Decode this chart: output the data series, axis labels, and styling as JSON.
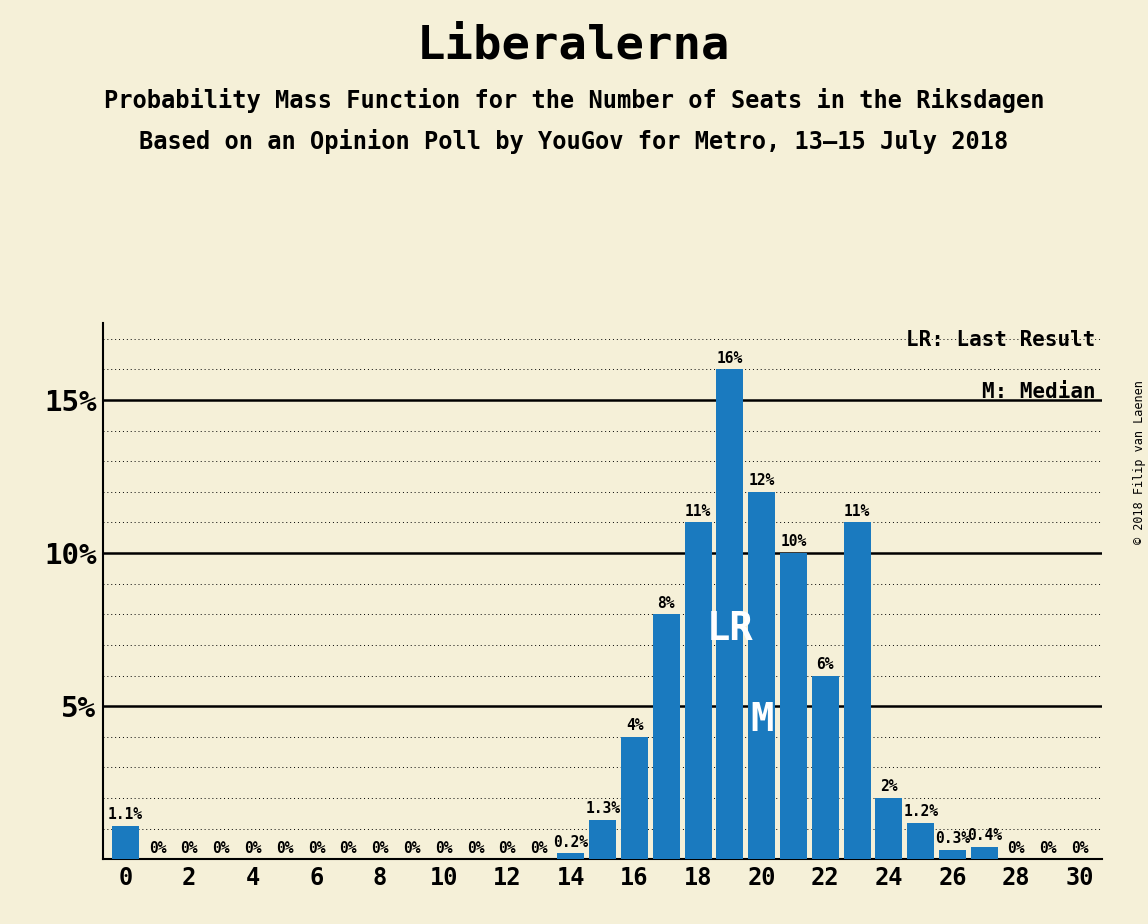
{
  "title": "Liberalerna",
  "subtitle1": "Probability Mass Function for the Number of Seats in the Riksdagen",
  "subtitle2": "Based on an Opinion Poll by YouGov for Metro, 13–15 July 2018",
  "copyright": "© 2018 Filip van Laenen",
  "lr_label": "LR: Last Result",
  "m_label": "M: Median",
  "background_color": "#f5f0d8",
  "bar_color": "#1a7abf",
  "seats": [
    0,
    1,
    2,
    3,
    4,
    5,
    6,
    7,
    8,
    9,
    10,
    11,
    12,
    13,
    14,
    15,
    16,
    17,
    18,
    19,
    20,
    21,
    22,
    23,
    24,
    25,
    26,
    27,
    28,
    29,
    30
  ],
  "probabilities": [
    1.1,
    0.0,
    0.0,
    0.0,
    0.0,
    0.0,
    0.0,
    0.0,
    0.0,
    0.0,
    0.0,
    0.0,
    0.0,
    0.0,
    0.2,
    1.3,
    4.0,
    8.0,
    11.0,
    16.0,
    12.0,
    10.0,
    6.0,
    11.0,
    2.0,
    1.2,
    0.3,
    0.4,
    0.0,
    0.0,
    0.0
  ],
  "bar_labels": [
    "1.1%",
    "0%",
    "0%",
    "0%",
    "0%",
    "0%",
    "0%",
    "0%",
    "0%",
    "0%",
    "0%",
    "0%",
    "0%",
    "0%",
    "0.2%",
    "1.3%",
    "4%",
    "8%",
    "11%",
    "16%",
    "12%",
    "10%",
    "6%",
    "11%",
    "2%",
    "1.2%",
    "0.3%",
    "0.4%",
    "0%",
    "0%",
    "0%"
  ],
  "lr_seat": 19,
  "median_seat": 20,
  "ylim": [
    0,
    17.5
  ],
  "title_fontsize": 34,
  "subtitle_fontsize": 17,
  "bar_label_fontsize": 10.5
}
